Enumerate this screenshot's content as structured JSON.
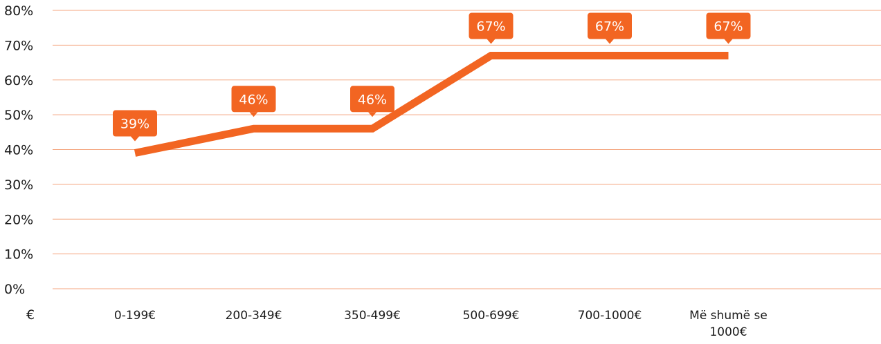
{
  "chart_data": {
    "type": "line",
    "xlabel": "€",
    "categories": [
      "0-199€",
      "200-349€",
      "350-499€",
      "500-699€",
      "700-1000€",
      "Më shumë se 1000€"
    ],
    "series": [
      {
        "values": [
          39,
          46,
          46,
          67,
          67,
          67
        ],
        "labels": [
          "39%",
          "46%",
          "46%",
          "67%",
          "67%",
          "67%"
        ]
      }
    ],
    "ylim": [
      0,
      80
    ],
    "yticks": [
      0,
      10,
      20,
      30,
      40,
      50,
      60,
      70,
      80
    ],
    "ytick_labels": [
      "0%",
      "10%",
      "20%",
      "30%",
      "40%",
      "50%",
      "60%",
      "70%",
      "80%"
    ],
    "grid": true,
    "legend": "none",
    "colors": {
      "line": "#f26522",
      "label_bg": "#f26522",
      "label_text": "#ffffff",
      "grid": "#f4a57f",
      "text": "#1a1a1a"
    }
  }
}
